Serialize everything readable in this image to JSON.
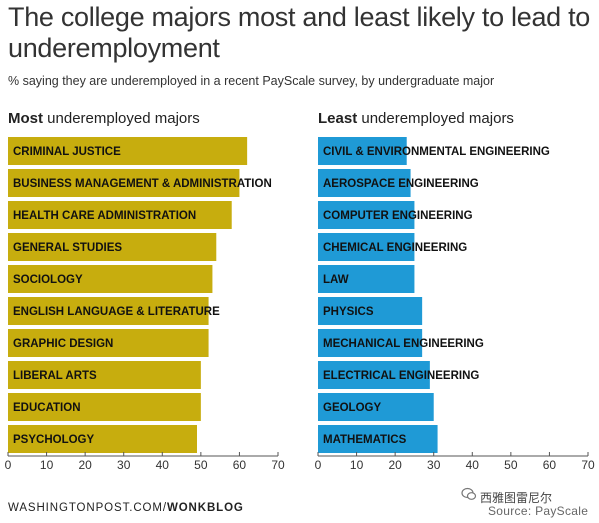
{
  "title": "The college majors most and least likely to lead to underemployment",
  "subtitle": "% saying they are underemployed in a recent PayScale survey, by undergraduate major",
  "footer": {
    "site": "WASHINGTONPOST.COM/",
    "section": "WONKBLOG"
  },
  "watermark": "西雅图雷尼尔",
  "source": "Source: PayScale",
  "chart_data": [
    {
      "type": "bar",
      "orientation": "horizontal",
      "heading_bold": "Most",
      "heading_rest": " underemployed majors",
      "color": "#c7ad0e",
      "xlim": [
        0,
        70
      ],
      "xticks": [
        0,
        10,
        20,
        30,
        40,
        50,
        60,
        70
      ],
      "categories": [
        "CRIMINAL JUSTICE",
        "BUSINESS MANAGEMENT & ADMINISTRATION",
        "HEALTH CARE ADMINISTRATION",
        "GENERAL STUDIES",
        "SOCIOLOGY",
        "ENGLISH LANGUAGE & LITERATURE",
        "GRAPHIC DESIGN",
        "LIBERAL ARTS",
        "EDUCATION",
        "PSYCHOLOGY"
      ],
      "values": [
        62,
        60,
        58,
        54,
        53,
        52,
        52,
        50,
        50,
        49
      ]
    },
    {
      "type": "bar",
      "orientation": "horizontal",
      "heading_bold": "Least",
      "heading_rest": " underemployed majors",
      "color": "#1f9ad6",
      "xlim": [
        0,
        70
      ],
      "xticks": [
        0,
        10,
        20,
        30,
        40,
        50,
        60,
        70
      ],
      "categories": [
        "CIVIL & ENVIRONMENTAL ENGINEERING",
        "AEROSPACE ENGINEERING",
        "COMPUTER ENGINEERING",
        "CHEMICAL ENGINEERING",
        "LAW",
        "PHYSICS",
        "MECHANICAL ENGINEERING",
        "ELECTRICAL ENGINEERING",
        "GEOLOGY",
        "MATHEMATICS"
      ],
      "values": [
        23,
        24,
        25,
        25,
        25,
        27,
        27,
        29,
        30,
        31
      ]
    }
  ]
}
